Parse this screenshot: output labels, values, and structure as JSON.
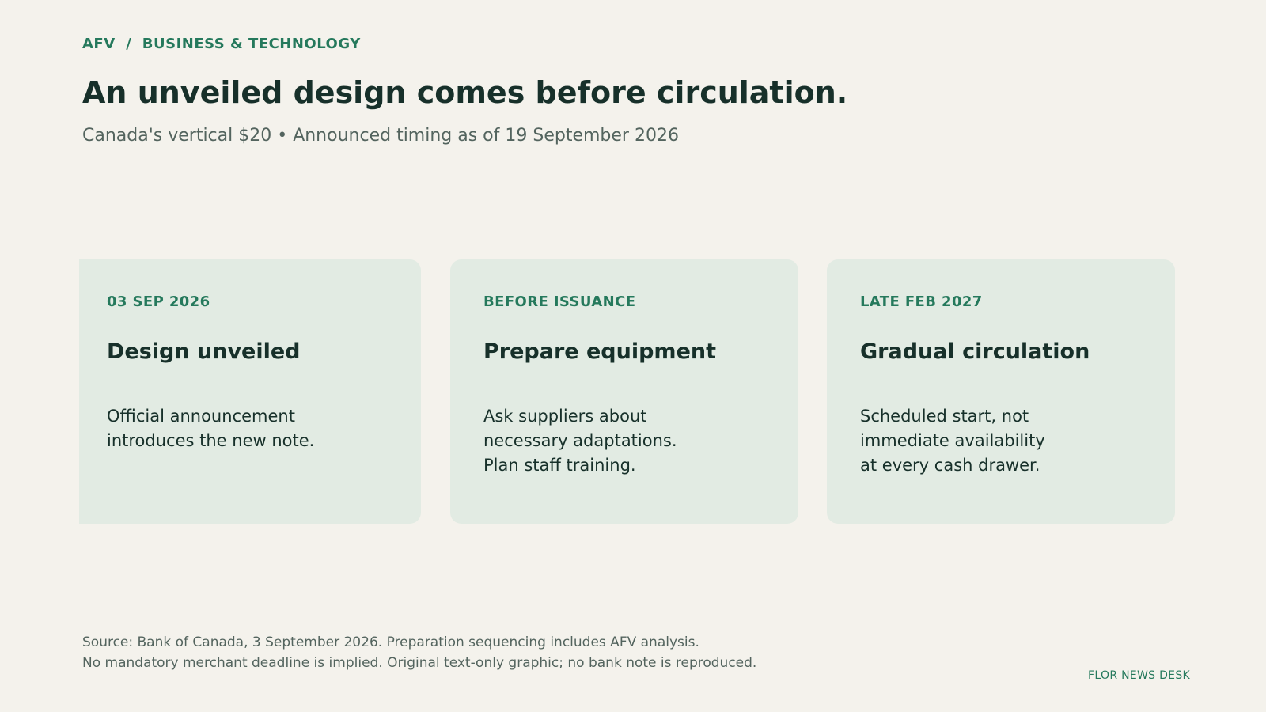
{
  "header": {
    "kicker": "AFV  /  BUSINESS & TECHNOLOGY",
    "headline": "An unveiled design comes before circulation.",
    "subhead": "Canada's vertical $20 • Announced timing as of 19 September 2026"
  },
  "cards": [
    {
      "date": "03 SEP 2026",
      "title": "Design unveiled",
      "body_lines": [
        "Official announcement",
        "introduces the new note."
      ]
    },
    {
      "date": "BEFORE ISSUANCE",
      "title": "Prepare equipment",
      "body_lines": [
        "Ask suppliers about",
        "necessary adaptations.",
        "Plan staff training."
      ]
    },
    {
      "date": "LATE FEB 2027",
      "title": "Gradual circulation",
      "body_lines": [
        "Scheduled start, not",
        "immediate availability",
        "at every cash drawer."
      ]
    }
  ],
  "footer": {
    "source_lines": [
      "Source: Bank of Canada, 3 September 2026. Preparation sequencing includes AFV analysis.",
      "No mandatory merchant deadline is implied. Original text-only graphic; no bank note is reproduced."
    ],
    "desk": "FLOR NEWS DESK"
  },
  "colors": {
    "background": "#f4f2ec",
    "card_background": "#e2ebe3",
    "accent_green": "#25795c",
    "heading_dark": "#17302a",
    "muted_text": "#53645e"
  }
}
